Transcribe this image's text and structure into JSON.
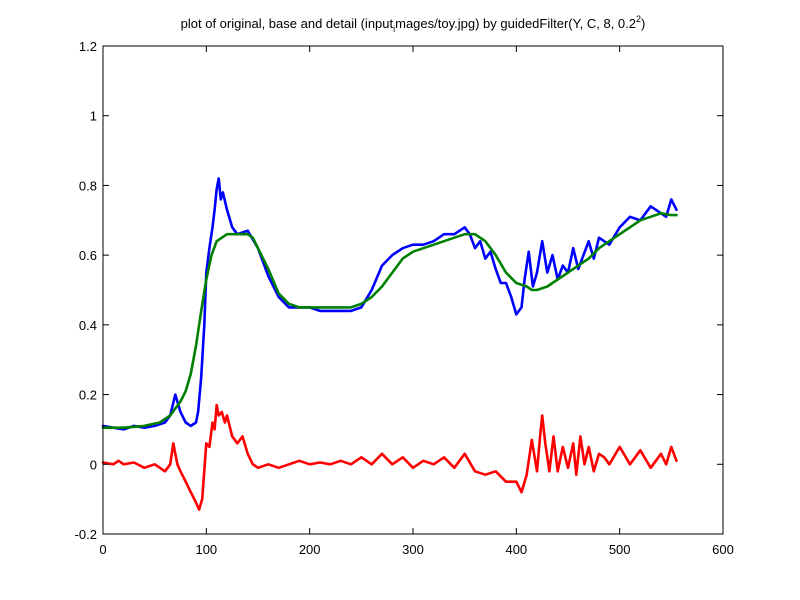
{
  "chart_data": {
    "type": "line",
    "title": {
      "part1": "plot of original, base and detail (input",
      "subscript": "i",
      "part2": "mages/toy.jpg) by guidedFilter(Y, C, 8, 0.2",
      "superscript": "2",
      "part3": ")"
    },
    "xlabel": "",
    "ylabel": "",
    "xlim": [
      0,
      600
    ],
    "ylim": [
      -0.2,
      1.2
    ],
    "xticks": [
      0,
      100,
      200,
      300,
      400,
      500,
      600
    ],
    "xtick_labels": [
      "0",
      "100",
      "200",
      "300",
      "400",
      "500",
      "600"
    ],
    "yticks": [
      -0.2,
      0,
      0.2,
      0.4,
      0.6,
      0.8,
      1,
      1.2
    ],
    "ytick_labels": [
      "-0.2",
      "0",
      "0.2",
      "0.4",
      "0.6",
      "0.8",
      "1",
      "1.2"
    ],
    "grid": false,
    "legend": "none",
    "series": [
      {
        "color": "#0000ff",
        "x": [
          0,
          10,
          20,
          30,
          40,
          50,
          60,
          65,
          70,
          75,
          80,
          85,
          90,
          92,
          95,
          98,
          100,
          103,
          106,
          108,
          110,
          112,
          114,
          116,
          120,
          125,
          130,
          140,
          150,
          160,
          170,
          180,
          190,
          200,
          210,
          220,
          230,
          240,
          250,
          260,
          270,
          280,
          290,
          300,
          310,
          320,
          330,
          340,
          350,
          355,
          360,
          365,
          370,
          375,
          380,
          385,
          390,
          395,
          400,
          405,
          408,
          412,
          416,
          420,
          425,
          430,
          435,
          440,
          445,
          450,
          455,
          460,
          465,
          470,
          475,
          480,
          490,
          500,
          510,
          520,
          530,
          540,
          545,
          550,
          555
        ],
        "values": [
          0.11,
          0.105,
          0.1,
          0.11,
          0.105,
          0.11,
          0.12,
          0.14,
          0.2,
          0.15,
          0.12,
          0.11,
          0.12,
          0.15,
          0.25,
          0.4,
          0.55,
          0.62,
          0.68,
          0.73,
          0.79,
          0.82,
          0.76,
          0.78,
          0.73,
          0.68,
          0.66,
          0.67,
          0.62,
          0.54,
          0.48,
          0.45,
          0.45,
          0.45,
          0.44,
          0.44,
          0.44,
          0.44,
          0.45,
          0.5,
          0.57,
          0.6,
          0.62,
          0.63,
          0.63,
          0.64,
          0.66,
          0.66,
          0.68,
          0.66,
          0.62,
          0.64,
          0.59,
          0.61,
          0.56,
          0.52,
          0.52,
          0.48,
          0.43,
          0.45,
          0.53,
          0.61,
          0.51,
          0.55,
          0.64,
          0.55,
          0.6,
          0.53,
          0.57,
          0.55,
          0.62,
          0.56,
          0.6,
          0.64,
          0.59,
          0.65,
          0.63,
          0.68,
          0.71,
          0.7,
          0.74,
          0.72,
          0.71,
          0.76,
          0.73
        ]
      },
      {
        "color": "#008000",
        "x": [
          0,
          20,
          40,
          55,
          65,
          70,
          75,
          80,
          85,
          90,
          95,
          100,
          105,
          110,
          120,
          130,
          140,
          145,
          150,
          160,
          170,
          180,
          190,
          200,
          210,
          220,
          230,
          240,
          250,
          260,
          270,
          280,
          290,
          300,
          310,
          320,
          330,
          340,
          350,
          360,
          370,
          380,
          390,
          400,
          410,
          415,
          420,
          430,
          440,
          450,
          460,
          470,
          480,
          490,
          500,
          510,
          520,
          530,
          540,
          550,
          555
        ],
        "values": [
          0.105,
          0.105,
          0.11,
          0.12,
          0.14,
          0.16,
          0.18,
          0.21,
          0.26,
          0.34,
          0.44,
          0.53,
          0.6,
          0.64,
          0.66,
          0.66,
          0.66,
          0.65,
          0.62,
          0.56,
          0.49,
          0.46,
          0.45,
          0.45,
          0.45,
          0.45,
          0.45,
          0.45,
          0.46,
          0.48,
          0.51,
          0.55,
          0.59,
          0.61,
          0.62,
          0.63,
          0.64,
          0.65,
          0.66,
          0.66,
          0.64,
          0.6,
          0.55,
          0.52,
          0.51,
          0.5,
          0.5,
          0.51,
          0.53,
          0.55,
          0.57,
          0.59,
          0.62,
          0.64,
          0.66,
          0.68,
          0.7,
          0.71,
          0.72,
          0.715,
          0.715
        ]
      },
      {
        "color": "#ff0000",
        "x": [
          0,
          10,
          15,
          20,
          30,
          40,
          50,
          60,
          65,
          68,
          70,
          72,
          75,
          80,
          85,
          90,
          93,
          96,
          100,
          103,
          106,
          108,
          110,
          112,
          115,
          118,
          120,
          125,
          130,
          135,
          140,
          145,
          150,
          160,
          170,
          180,
          190,
          200,
          210,
          220,
          230,
          240,
          250,
          260,
          270,
          280,
          290,
          300,
          310,
          320,
          330,
          340,
          350,
          360,
          370,
          380,
          390,
          400,
          405,
          410,
          415,
          420,
          423,
          425,
          428,
          432,
          436,
          440,
          445,
          450,
          455,
          458,
          462,
          466,
          470,
          475,
          480,
          485,
          490,
          500,
          510,
          520,
          530,
          540,
          545,
          550,
          555
        ],
        "values": [
          0.005,
          0.0,
          0.01,
          0.0,
          0.005,
          -0.01,
          0.0,
          -0.02,
          0.0,
          0.06,
          0.03,
          0.0,
          -0.02,
          -0.05,
          -0.08,
          -0.11,
          -0.13,
          -0.1,
          0.06,
          0.05,
          0.12,
          0.1,
          0.17,
          0.14,
          0.15,
          0.12,
          0.14,
          0.08,
          0.06,
          0.08,
          0.03,
          0.0,
          -0.01,
          0.0,
          -0.01,
          0.0,
          0.01,
          0.0,
          0.005,
          0.0,
          0.01,
          0.0,
          0.02,
          0.0,
          0.03,
          0.0,
          0.02,
          -0.01,
          0.01,
          0.0,
          0.02,
          -0.01,
          0.03,
          -0.02,
          -0.03,
          -0.02,
          -0.05,
          -0.05,
          -0.08,
          -0.03,
          0.07,
          -0.02,
          0.08,
          0.14,
          0.06,
          -0.02,
          0.08,
          -0.02,
          0.05,
          -0.01,
          0.06,
          -0.03,
          0.08,
          0.0,
          0.05,
          -0.02,
          0.03,
          0.02,
          0.0,
          0.05,
          0.0,
          0.04,
          -0.01,
          0.03,
          0.0,
          0.05,
          0.01
        ]
      }
    ]
  }
}
